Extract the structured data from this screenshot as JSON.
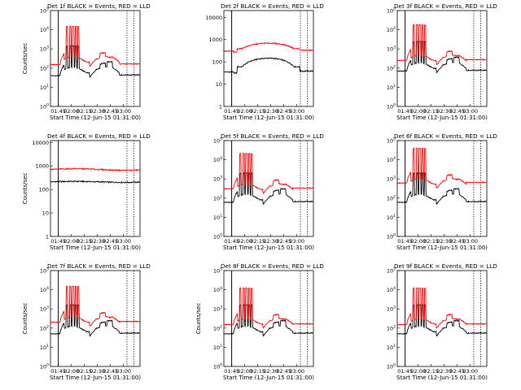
{
  "figure": {
    "title_suffix": "BLACK = Events, RED = LLD",
    "xlabel": "Start Time (12-Jun-15 01:31:00)",
    "ylabel": "Counts/sec",
    "x_ticks": [
      "01:45",
      "02:00",
      "02:15",
      "02:30",
      "02:45",
      "03:00"
    ],
    "vline_solid_label": "01:45",
    "vline_dotted_labels": [
      "02:50",
      "03:05"
    ]
  },
  "chart_data": [
    {
      "type": "line",
      "title": "Det 1f BLACK = Events, RED = LLD",
      "panel": "Det 1f",
      "yscale": "log",
      "ylim": [
        1,
        100000
      ],
      "y_ticks": [
        "10^0",
        "10^1",
        "10^2",
        "10^3",
        "10^4",
        "10^5"
      ],
      "show_ylabel": true,
      "series": [
        {
          "name": "Events",
          "color": "#000000",
          "baseline": 40,
          "plateau": 70,
          "shape": "flare",
          "spikes": true
        },
        {
          "name": "LLD",
          "color": "#ff0000",
          "baseline": 150,
          "plateau": 250,
          "shape": "flare",
          "spikes": true
        }
      ]
    },
    {
      "type": "line",
      "title": "Det 2f BLACK = Events, RED = LLD",
      "panel": "Det 2f",
      "yscale": "log",
      "ylim": [
        1,
        20000
      ],
      "y_ticks": [
        "1",
        "10",
        "100",
        "1000",
        "10000"
      ],
      "show_ylabel": false,
      "series": [
        {
          "name": "Events",
          "color": "#000000",
          "baseline": 35,
          "plateau": 120,
          "shape": "hump",
          "spikes": false
        },
        {
          "name": "LLD",
          "color": "#ff0000",
          "baseline": 300,
          "plateau": 600,
          "shape": "hump",
          "spikes": false
        }
      ]
    },
    {
      "type": "line",
      "title": "Det 3f BLACK = Events, RED = LLD",
      "panel": "Det 3f",
      "yscale": "log",
      "ylim": [
        1,
        100000
      ],
      "y_ticks": [
        "10^0",
        "10^1",
        "10^2",
        "10^3",
        "10^4",
        "10^5"
      ],
      "show_ylabel": false,
      "series": [
        {
          "name": "Events",
          "color": "#000000",
          "baseline": 70,
          "plateau": 120,
          "shape": "flare",
          "spikes": true
        },
        {
          "name": "LLD",
          "color": "#ff0000",
          "baseline": 250,
          "plateau": 300,
          "shape": "flare",
          "spikes": true
        }
      ]
    },
    {
      "type": "line",
      "title": "Det 4f BLACK = Events, RED = LLD",
      "panel": "Det 4f",
      "yscale": "log",
      "ylim": [
        1,
        12000
      ],
      "y_ticks": [
        "1",
        "10",
        "100",
        "1000",
        "10000"
      ],
      "show_ylabel": true,
      "series": [
        {
          "name": "Events",
          "color": "#000000",
          "baseline": 200,
          "plateau": 220,
          "shape": "flat",
          "spikes": false
        },
        {
          "name": "LLD",
          "color": "#ff0000",
          "baseline": 650,
          "plateau": 760,
          "shape": "flat",
          "spikes": false
        }
      ]
    },
    {
      "type": "line",
      "title": "Det 5f BLACK = Events, RED = LLD",
      "panel": "Det 5f",
      "yscale": "log",
      "ylim": [
        1,
        100000
      ],
      "y_ticks": [
        "10^0",
        "10^1",
        "10^2",
        "10^3",
        "10^4",
        "10^5"
      ],
      "show_ylabel": false,
      "series": [
        {
          "name": "Events",
          "color": "#000000",
          "baseline": 60,
          "plateau": 100,
          "shape": "flare",
          "spikes": true
        },
        {
          "name": "LLD",
          "color": "#ff0000",
          "baseline": 300,
          "plateau": 350,
          "shape": "flare",
          "spikes": true
        }
      ]
    },
    {
      "type": "line",
      "title": "Det 6f BLACK = Events, RED = LLD",
      "panel": "Det 6f",
      "yscale": "log",
      "ylim": [
        1,
        100000
      ],
      "y_ticks": [
        "10^0",
        "10^1",
        "10^2",
        "10^3",
        "10^4",
        "10^5"
      ],
      "show_ylabel": false,
      "series": [
        {
          "name": "Events",
          "color": "#000000",
          "baseline": 60,
          "plateau": 100,
          "shape": "flare",
          "spikes": true
        },
        {
          "name": "LLD",
          "color": "#ff0000",
          "baseline": 600,
          "plateau": 650,
          "shape": "flare",
          "spikes": true
        }
      ]
    },
    {
      "type": "line",
      "title": "Det 7f BLACK = Events, RED = LLD",
      "panel": "Det 7f",
      "yscale": "log",
      "ylim": [
        1,
        100000
      ],
      "y_ticks": [
        "10^0",
        "10^1",
        "10^2",
        "10^3",
        "10^4",
        "10^5"
      ],
      "show_ylabel": true,
      "series": [
        {
          "name": "Events",
          "color": "#000000",
          "baseline": 50,
          "plateau": 80,
          "shape": "flare",
          "spikes": true
        },
        {
          "name": "LLD",
          "color": "#ff0000",
          "baseline": 200,
          "plateau": 250,
          "shape": "flare",
          "spikes": true
        }
      ]
    },
    {
      "type": "line",
      "title": "Det 8f BLACK = Events, RED = LLD",
      "panel": "Det 8f",
      "yscale": "log",
      "ylim": [
        1,
        100000
      ],
      "y_ticks": [
        "10^0",
        "10^1",
        "10^2",
        "10^3",
        "10^4",
        "10^5"
      ],
      "show_ylabel": true,
      "series": [
        {
          "name": "Events",
          "color": "#000000",
          "baseline": 50,
          "plateau": 80,
          "shape": "flare",
          "spikes": true
        },
        {
          "name": "LLD",
          "color": "#ff0000",
          "baseline": 150,
          "plateau": 200,
          "shape": "flare",
          "spikes": true
        }
      ]
    },
    {
      "type": "line",
      "title": "Det 9f BLACK = Events, RED = LLD",
      "panel": "Det 9f",
      "yscale": "log",
      "ylim": [
        1,
        100000
      ],
      "y_ticks": [
        "10^0",
        "10^1",
        "10^2",
        "10^3",
        "10^4",
        "10^5"
      ],
      "show_ylabel": false,
      "series": [
        {
          "name": "Events",
          "color": "#000000",
          "baseline": 50,
          "plateau": 80,
          "shape": "flare",
          "spikes": true
        },
        {
          "name": "LLD",
          "color": "#ff0000",
          "baseline": 150,
          "plateau": 200,
          "shape": "flare",
          "spikes": true
        }
      ]
    }
  ]
}
